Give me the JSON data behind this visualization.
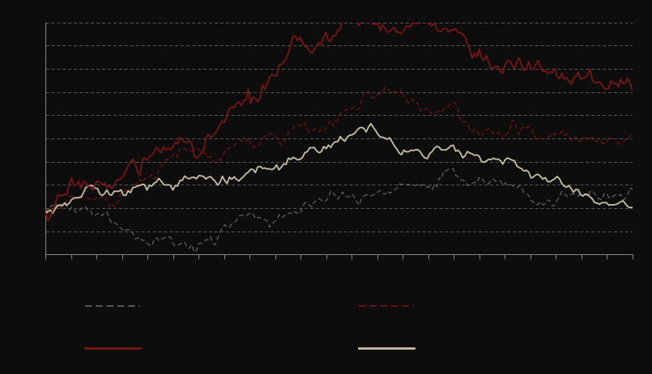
{
  "n_points": 250,
  "background_color": "#0d0d0d",
  "plot_bg_color": "#0d0d0d",
  "line1_color": "#666666",
  "line2_color": "#7a1515",
  "line3_color": "#7a1515",
  "line4_color": "#c8c0a0",
  "seed": 17,
  "ylim": [
    -0.15,
    0.7
  ],
  "axes_color": "#888888"
}
